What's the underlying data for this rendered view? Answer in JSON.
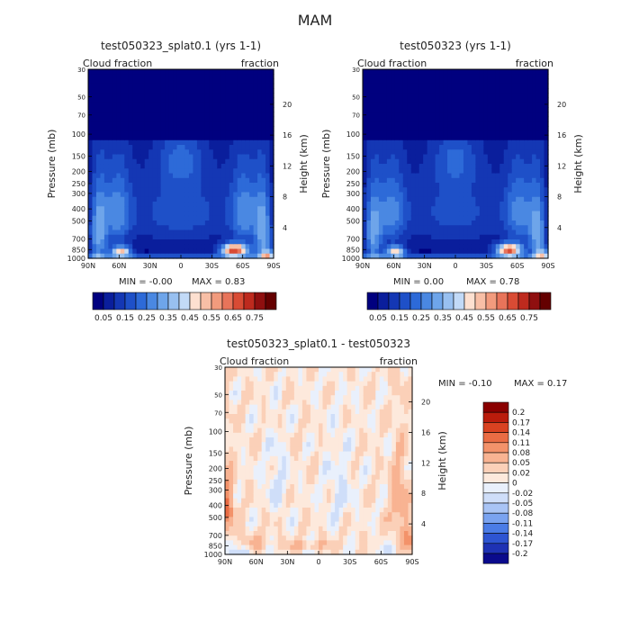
{
  "figure": {
    "title": "MAM"
  },
  "colors": {
    "abs_scale": [
      "#00007f",
      "#0a1e9c",
      "#1437b4",
      "#1e50c8",
      "#2d6ad8",
      "#4a88e2",
      "#6ea5ea",
      "#98c0f0",
      "#c2daf7",
      "#fde0d0",
      "#f8bfa6",
      "#f29b7d",
      "#e8745a",
      "#d94b34",
      "#be2a1e",
      "#8f0f0f",
      "#640000"
    ],
    "diff_scale": [
      "#0a0a8c",
      "#1e32b4",
      "#2e55d2",
      "#4b7ce6",
      "#7aa3f0",
      "#a9c4f5",
      "#cfdef9",
      "#e9f0fc",
      "#fde9dc",
      "#fbd0b8",
      "#f8b392",
      "#f3926a",
      "#ea6c44",
      "#d94221",
      "#ba1c0c",
      "#8a0000"
    ]
  },
  "chart_data": [
    {
      "type": "heatmap",
      "title": "test050323_splat0.1 (yrs 1-1)",
      "left_label": "Cloud fraction",
      "right_label": "fraction",
      "xlabel": "",
      "ylabel": "Pressure (mb)",
      "y2label": "Height (km)",
      "x_ticks": [
        "90N",
        "60N",
        "30N",
        "0",
        "30S",
        "60S",
        "90S"
      ],
      "y_ticks": [
        30,
        50,
        70,
        100,
        150,
        200,
        250,
        300,
        400,
        500,
        700,
        850,
        1000
      ],
      "y2_ticks": [
        20,
        16,
        12,
        8,
        4
      ],
      "min_text": "MIN =   -0.00",
      "max_text": "MAX =    0.83",
      "min": -0.0,
      "max": 0.83,
      "colorbar_labels": [
        "0.05",
        "0.15",
        "0.25",
        "0.35",
        "0.45",
        "0.55",
        "0.65",
        "0.75"
      ]
    },
    {
      "type": "heatmap",
      "title": "test050323 (yrs 1-1)",
      "left_label": "Cloud fraction",
      "right_label": "fraction",
      "xlabel": "",
      "ylabel": "Pressure (mb)",
      "y2label": "Height (km)",
      "x_ticks": [
        "90N",
        "60N",
        "30N",
        "0",
        "30S",
        "60S",
        "90S"
      ],
      "y_ticks": [
        30,
        50,
        70,
        100,
        150,
        200,
        250,
        300,
        400,
        500,
        700,
        850,
        1000
      ],
      "y2_ticks": [
        20,
        16,
        12,
        8,
        4
      ],
      "min_text": "MIN =    0.00",
      "max_text": "MAX =    0.78",
      "min": 0.0,
      "max": 0.78,
      "colorbar_labels": [
        "0.05",
        "0.15",
        "0.25",
        "0.35",
        "0.45",
        "0.55",
        "0.65",
        "0.75"
      ]
    },
    {
      "type": "heatmap",
      "title": "test050323_splat0.1 - test050323",
      "left_label": "Cloud fraction",
      "right_label": "fraction",
      "xlabel": "",
      "ylabel": "Pressure (mb)",
      "y2label": "Height (km)",
      "x_ticks": [
        "90N",
        "60N",
        "30N",
        "0",
        "30S",
        "60S",
        "90S"
      ],
      "y_ticks": [
        30,
        50,
        70,
        100,
        150,
        200,
        250,
        300,
        400,
        500,
        700,
        850,
        1000
      ],
      "y2_ticks": [
        20,
        16,
        12,
        8,
        4
      ],
      "min_text": "MIN =   -0.10",
      "max_text": "MAX =    0.17",
      "min": -0.1,
      "max": 0.17,
      "colorbar_labels": [
        "0.2",
        "0.17",
        "0.14",
        "0.11",
        "0.08",
        "0.05",
        "0.02",
        "0",
        "-0.02",
        "-0.05",
        "-0.08",
        "-0.11",
        "-0.14",
        "-0.17",
        "-0.2"
      ]
    }
  ]
}
